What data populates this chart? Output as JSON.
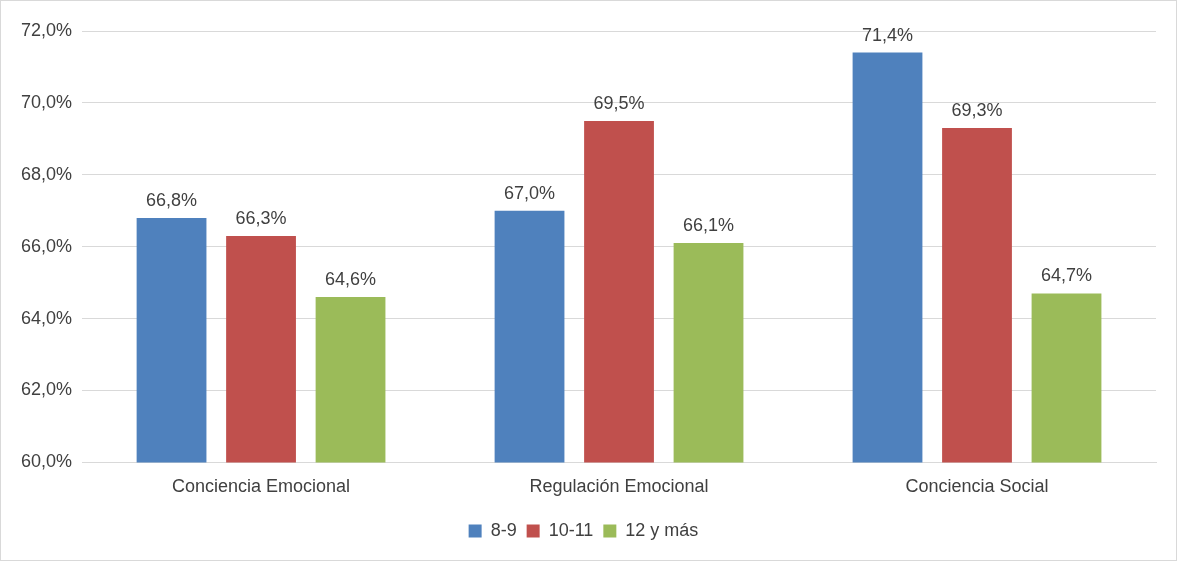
{
  "chart_data": {
    "type": "bar",
    "categories": [
      "Conciencia Emocional",
      "Regulación Emocional",
      "Conciencia Social"
    ],
    "series": [
      {
        "name": "8-9",
        "color": "#4f81bd",
        "values": [
          66.8,
          67.0,
          71.4
        ],
        "value_labels": [
          "66,8%",
          "67,0%",
          "71,4%"
        ]
      },
      {
        "name": "10-11",
        "color": "#c0504d",
        "values": [
          66.3,
          69.5,
          69.3
        ],
        "value_labels": [
          "66,3%",
          "69,5%",
          "69,3%"
        ]
      },
      {
        "name": "12 y más",
        "color": "#9bbb59",
        "values": [
          64.6,
          66.1,
          64.7
        ],
        "value_labels": [
          "64,6%",
          "66,1%",
          "64,7%"
        ]
      }
    ],
    "ylim": [
      60,
      72
    ],
    "yticks": [
      {
        "value": 60,
        "label": "60,0%"
      },
      {
        "value": 62,
        "label": "62,0%"
      },
      {
        "value": 64,
        "label": "64,0%"
      },
      {
        "value": 66,
        "label": "66,0%"
      },
      {
        "value": 68,
        "label": "68,0%"
      },
      {
        "value": 70,
        "label": "70,0%"
      },
      {
        "value": 72,
        "label": "72,0%"
      }
    ],
    "grid": "y",
    "legend": "bottom"
  }
}
